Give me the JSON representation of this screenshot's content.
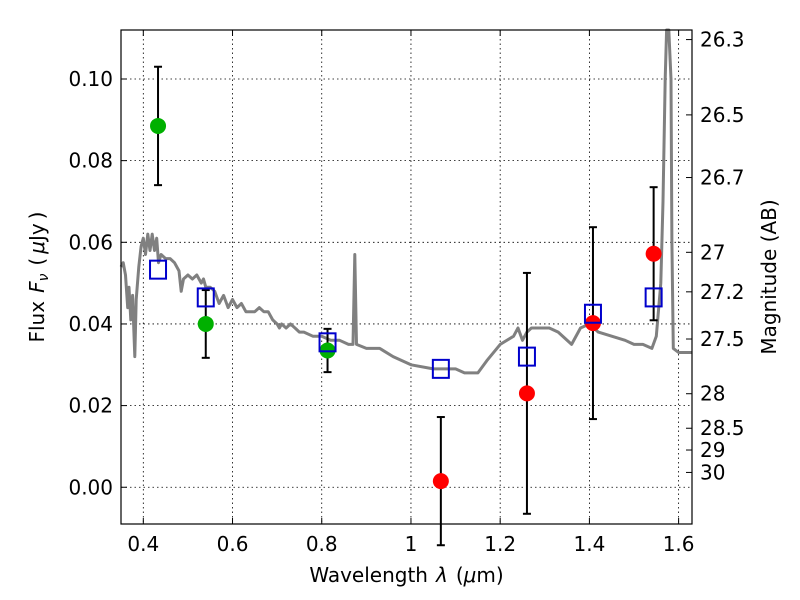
{
  "chart_data": {
    "type": "scatter",
    "title": "",
    "xlabel": "Wavelength",
    "xlabel_symbol": "λ",
    "xlabel_unit_open": "(",
    "xlabel_unit_mu": "μ",
    "xlabel_unit_rest": "m)",
    "ylabel": "Flux",
    "ylabel_symbol_F": "F",
    "ylabel_symbol_sub": "ν",
    "ylabel_unit_open": "(",
    "ylabel_unit_mu": "μ",
    "ylabel_unit_rest": "Jy",
    "ylabel_unit_close": ")",
    "ylabel_right": "Magnitude (AB)",
    "xlim": [
      0.35,
      1.63
    ],
    "ylim": [
      -0.009,
      0.112
    ],
    "grid": true,
    "x_ticks": [
      {
        "value": 0.4,
        "label": "0.4"
      },
      {
        "value": 0.6,
        "label": "0.6"
      },
      {
        "value": 0.8,
        "label": "0.8"
      },
      {
        "value": 1.0,
        "label": "1"
      },
      {
        "value": 1.2,
        "label": "1.2"
      },
      {
        "value": 1.4,
        "label": "1.4"
      },
      {
        "value": 1.6,
        "label": "1.6"
      }
    ],
    "y_ticks": [
      {
        "value": 0.0,
        "label": "0.00"
      },
      {
        "value": 0.02,
        "label": "0.02"
      },
      {
        "value": 0.04,
        "label": "0.04"
      },
      {
        "value": 0.06,
        "label": "0.06"
      },
      {
        "value": 0.08,
        "label": "0.08"
      },
      {
        "value": 0.1,
        "label": "0.10"
      }
    ],
    "magnitude_ticks": [
      {
        "mag": 26.3,
        "label": "26.3"
      },
      {
        "mag": 26.5,
        "label": "26.5"
      },
      {
        "mag": 26.7,
        "label": "26.7"
      },
      {
        "mag": 27.0,
        "label": "27"
      },
      {
        "mag": 27.2,
        "label": "27.2"
      },
      {
        "mag": 27.5,
        "label": "27.5"
      },
      {
        "mag": 28.0,
        "label": "28"
      },
      {
        "mag": 28.5,
        "label": "28.5"
      },
      {
        "mag": 29.0,
        "label": "29"
      },
      {
        "mag": 30.0,
        "label": "30"
      }
    ],
    "series": [
      {
        "kind": "line",
        "color": "#808080",
        "points": [
          [
            0.35,
            0.054
          ],
          [
            0.355,
            0.055
          ],
          [
            0.36,
            0.052
          ],
          [
            0.365,
            0.044
          ],
          [
            0.368,
            0.049
          ],
          [
            0.372,
            0.041
          ],
          [
            0.376,
            0.047
          ],
          [
            0.379,
            0.038
          ],
          [
            0.381,
            0.032
          ],
          [
            0.384,
            0.046
          ],
          [
            0.39,
            0.054
          ],
          [
            0.395,
            0.059
          ],
          [
            0.4,
            0.061
          ],
          [
            0.405,
            0.057
          ],
          [
            0.41,
            0.062
          ],
          [
            0.415,
            0.058
          ],
          [
            0.42,
            0.062
          ],
          [
            0.425,
            0.058
          ],
          [
            0.43,
            0.061
          ],
          [
            0.434,
            0.055
          ],
          [
            0.44,
            0.057
          ],
          [
            0.45,
            0.056
          ],
          [
            0.46,
            0.056
          ],
          [
            0.47,
            0.055
          ],
          [
            0.48,
            0.053
          ],
          [
            0.485,
            0.048
          ],
          [
            0.49,
            0.051
          ],
          [
            0.5,
            0.052
          ],
          [
            0.51,
            0.051
          ],
          [
            0.52,
            0.052
          ],
          [
            0.53,
            0.05
          ],
          [
            0.535,
            0.051
          ],
          [
            0.54,
            0.049
          ],
          [
            0.55,
            0.049
          ],
          [
            0.56,
            0.048
          ],
          [
            0.57,
            0.045
          ],
          [
            0.58,
            0.047
          ],
          [
            0.59,
            0.044
          ],
          [
            0.6,
            0.046
          ],
          [
            0.61,
            0.044
          ],
          [
            0.62,
            0.045
          ],
          [
            0.63,
            0.043
          ],
          [
            0.64,
            0.043
          ],
          [
            0.65,
            0.043
          ],
          [
            0.66,
            0.044
          ],
          [
            0.67,
            0.043
          ],
          [
            0.68,
            0.043
          ],
          [
            0.69,
            0.041
          ],
          [
            0.7,
            0.04
          ],
          [
            0.705,
            0.039
          ],
          [
            0.71,
            0.04
          ],
          [
            0.72,
            0.039
          ],
          [
            0.73,
            0.04
          ],
          [
            0.74,
            0.039
          ],
          [
            0.75,
            0.038
          ],
          [
            0.76,
            0.038
          ],
          [
            0.78,
            0.037
          ],
          [
            0.8,
            0.037
          ],
          [
            0.82,
            0.036
          ],
          [
            0.84,
            0.036
          ],
          [
            0.86,
            0.035
          ],
          [
            0.87,
            0.035
          ],
          [
            0.874,
            0.057
          ],
          [
            0.878,
            0.035
          ],
          [
            0.9,
            0.034
          ],
          [
            0.93,
            0.034
          ],
          [
            0.96,
            0.032
          ],
          [
            1.0,
            0.03
          ],
          [
            1.05,
            0.029
          ],
          [
            1.1,
            0.029
          ],
          [
            1.12,
            0.028
          ],
          [
            1.15,
            0.028
          ],
          [
            1.17,
            0.031
          ],
          [
            1.2,
            0.035
          ],
          [
            1.23,
            0.037
          ],
          [
            1.24,
            0.039
          ],
          [
            1.25,
            0.036
          ],
          [
            1.26,
            0.038
          ],
          [
            1.27,
            0.039
          ],
          [
            1.29,
            0.039
          ],
          [
            1.31,
            0.039
          ],
          [
            1.33,
            0.038
          ],
          [
            1.36,
            0.035
          ],
          [
            1.38,
            0.039
          ],
          [
            1.4,
            0.04
          ],
          [
            1.42,
            0.038
          ],
          [
            1.45,
            0.037
          ],
          [
            1.48,
            0.036
          ],
          [
            1.5,
            0.035
          ],
          [
            1.52,
            0.035
          ],
          [
            1.54,
            0.034
          ],
          [
            1.55,
            0.037
          ],
          [
            1.56,
            0.05
          ],
          [
            1.565,
            0.07
          ],
          [
            1.57,
            0.1
          ],
          [
            1.573,
            0.112
          ],
          [
            1.578,
            0.112
          ],
          [
            1.583,
            0.1
          ],
          [
            1.585,
            0.06
          ],
          [
            1.588,
            0.034
          ],
          [
            1.6,
            0.033
          ],
          [
            1.63,
            0.033
          ]
        ]
      },
      {
        "kind": "points",
        "marker": "circle",
        "color": "#00b000",
        "points": [
          {
            "x": 0.433,
            "y": 0.0885,
            "err": 0.0145
          },
          {
            "x": 0.54,
            "y": 0.04,
            "err": 0.0083
          },
          {
            "x": 0.813,
            "y": 0.0335,
            "err": 0.0053
          }
        ]
      },
      {
        "kind": "points",
        "marker": "circle",
        "color": "#ff0000",
        "points": [
          {
            "x": 1.067,
            "y": 0.0015,
            "err": 0.0157
          },
          {
            "x": 1.26,
            "y": 0.023,
            "err": 0.0295
          },
          {
            "x": 1.408,
            "y": 0.0402,
            "err": 0.0235
          },
          {
            "x": 1.544,
            "y": 0.0572,
            "err": 0.0163
          }
        ]
      },
      {
        "kind": "points",
        "marker": "square",
        "color": "#0000cc",
        "points": [
          {
            "x": 0.433,
            "y": 0.0533
          },
          {
            "x": 0.54,
            "y": 0.0465
          },
          {
            "x": 0.813,
            "y": 0.0355
          },
          {
            "x": 1.067,
            "y": 0.029
          },
          {
            "x": 1.26,
            "y": 0.032
          },
          {
            "x": 1.408,
            "y": 0.0425
          },
          {
            "x": 1.544,
            "y": 0.0465
          }
        ]
      }
    ]
  }
}
